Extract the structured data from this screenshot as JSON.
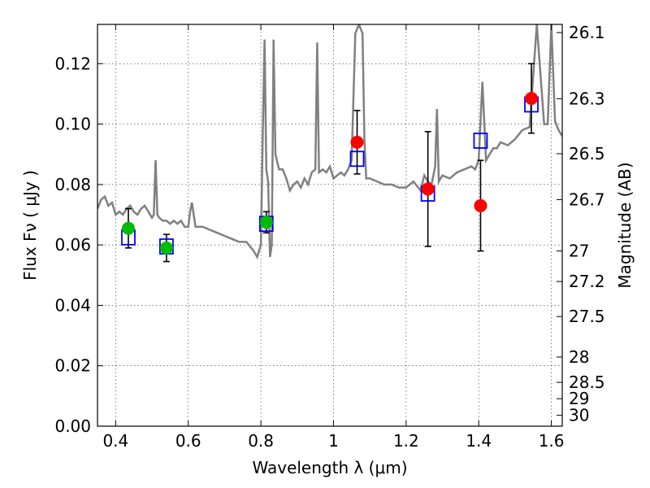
{
  "chart_data": {
    "type": "scatter",
    "xlabel": "Wavelength  λ (μm)",
    "ylabel": "Flux  Fν  ( μJy )",
    "y2label": "Magnitude (AB)",
    "xlim": [
      0.35,
      1.63
    ],
    "ylim": [
      0.0,
      0.133
    ],
    "grid": true,
    "x_ticks": [
      "0.4",
      "0.6",
      "0.8",
      "1",
      "1.2",
      "1.4",
      "1.6"
    ],
    "x_tick_values": [
      0.4,
      0.6,
      0.8,
      1.0,
      1.2,
      1.4,
      1.6
    ],
    "y_ticks": [
      "0.00",
      "0.02",
      "0.04",
      "0.06",
      "0.08",
      "0.10",
      "0.12"
    ],
    "y_tick_values": [
      0.0,
      0.02,
      0.04,
      0.06,
      0.08,
      0.1,
      0.12
    ],
    "mag_ticks": [
      {
        "label": "26.1",
        "flux": 0.1303
      },
      {
        "label": "26.3",
        "flux": 0.1084
      },
      {
        "label": "26.5",
        "flux": 0.0902
      },
      {
        "label": "26.7",
        "flux": 0.075
      },
      {
        "label": "27",
        "flux": 0.058
      },
      {
        "label": "27.2",
        "flux": 0.0479
      },
      {
        "label": "27.5",
        "flux": 0.0363
      },
      {
        "label": "28",
        "flux": 0.0229
      },
      {
        "label": "28.5",
        "flux": 0.0145
      },
      {
        "label": "29",
        "flux": 0.0091
      },
      {
        "label": "30",
        "flux": 0.0036
      }
    ],
    "colors": {
      "model": "#808080",
      "model_photometry": "#0000ff",
      "optical_points": "#00bb00",
      "nir_points": "#ff0000",
      "errorbar": "#000000"
    },
    "model_spectrum": {
      "x": [
        0.35,
        0.36,
        0.37,
        0.38,
        0.39,
        0.4,
        0.41,
        0.42,
        0.43,
        0.44,
        0.45,
        0.46,
        0.47,
        0.48,
        0.49,
        0.5,
        0.505,
        0.51,
        0.515,
        0.52,
        0.53,
        0.54,
        0.55,
        0.56,
        0.57,
        0.58,
        0.59,
        0.6,
        0.605,
        0.61,
        0.615,
        0.62,
        0.64,
        0.66,
        0.68,
        0.7,
        0.72,
        0.74,
        0.76,
        0.78,
        0.79,
        0.8,
        0.805,
        0.81,
        0.815,
        0.82,
        0.825,
        0.83,
        0.835,
        0.84,
        0.85,
        0.86,
        0.87,
        0.88,
        0.89,
        0.9,
        0.91,
        0.92,
        0.93,
        0.94,
        0.95,
        0.955,
        0.96,
        0.97,
        0.98,
        0.99,
        1.0,
        1.01,
        1.02,
        1.03,
        1.04,
        1.05,
        1.06,
        1.07,
        1.08,
        1.085,
        1.09,
        1.1,
        1.12,
        1.14,
        1.16,
        1.18,
        1.2,
        1.22,
        1.24,
        1.25,
        1.26,
        1.27,
        1.28,
        1.285,
        1.29,
        1.3,
        1.32,
        1.34,
        1.36,
        1.38,
        1.39,
        1.4,
        1.41,
        1.42,
        1.43,
        1.44,
        1.45,
        1.46,
        1.48,
        1.5,
        1.52,
        1.54,
        1.56,
        1.58,
        1.59,
        1.6,
        1.61,
        1.62,
        1.63
      ],
      "y": [
        0.072,
        0.075,
        0.076,
        0.073,
        0.074,
        0.07,
        0.071,
        0.07,
        0.072,
        0.073,
        0.071,
        0.07,
        0.072,
        0.073,
        0.071,
        0.069,
        0.07,
        0.088,
        0.07,
        0.069,
        0.068,
        0.068,
        0.067,
        0.068,
        0.067,
        0.068,
        0.066,
        0.066,
        0.071,
        0.074,
        0.07,
        0.066,
        0.066,
        0.065,
        0.064,
        0.063,
        0.062,
        0.061,
        0.061,
        0.058,
        0.056,
        0.06,
        0.095,
        0.128,
        0.085,
        0.081,
        0.056,
        0.06,
        0.128,
        0.09,
        0.085,
        0.085,
        0.082,
        0.078,
        0.08,
        0.081,
        0.079,
        0.082,
        0.08,
        0.084,
        0.085,
        0.127,
        0.084,
        0.085,
        0.084,
        0.086,
        0.082,
        0.083,
        0.084,
        0.083,
        0.085,
        0.088,
        0.13,
        0.133,
        0.13,
        0.095,
        0.082,
        0.082,
        0.081,
        0.08,
        0.08,
        0.079,
        0.079,
        0.081,
        0.078,
        0.083,
        0.081,
        0.08,
        0.086,
        0.105,
        0.081,
        0.083,
        0.082,
        0.084,
        0.085,
        0.086,
        0.085,
        0.088,
        0.114,
        0.088,
        0.09,
        0.092,
        0.092,
        0.094,
        0.093,
        0.095,
        0.098,
        0.099,
        0.133,
        0.1,
        0.1,
        0.133,
        0.101,
        0.098,
        0.096
      ]
    },
    "model_photometry": {
      "x": [
        0.435,
        0.54,
        0.815,
        1.065,
        1.26,
        1.405,
        1.545
      ],
      "y": [
        0.0625,
        0.0595,
        0.067,
        0.0885,
        0.077,
        0.0945,
        0.1065
      ]
    },
    "series": [
      {
        "name": "",
        "color": "#00bb00",
        "x": [
          0.435,
          0.54,
          0.815
        ],
        "y": [
          0.0655,
          0.059,
          0.0675
        ],
        "err": [
          0.0065,
          0.0045,
          0.0035
        ]
      },
      {
        "name": "",
        "color": "#ff0000",
        "x": [
          1.065,
          1.26,
          1.405,
          1.545
        ],
        "y": [
          0.094,
          0.0785,
          0.073,
          0.1085
        ],
        "err": [
          0.0105,
          0.019,
          0.015,
          0.0115
        ]
      }
    ]
  }
}
